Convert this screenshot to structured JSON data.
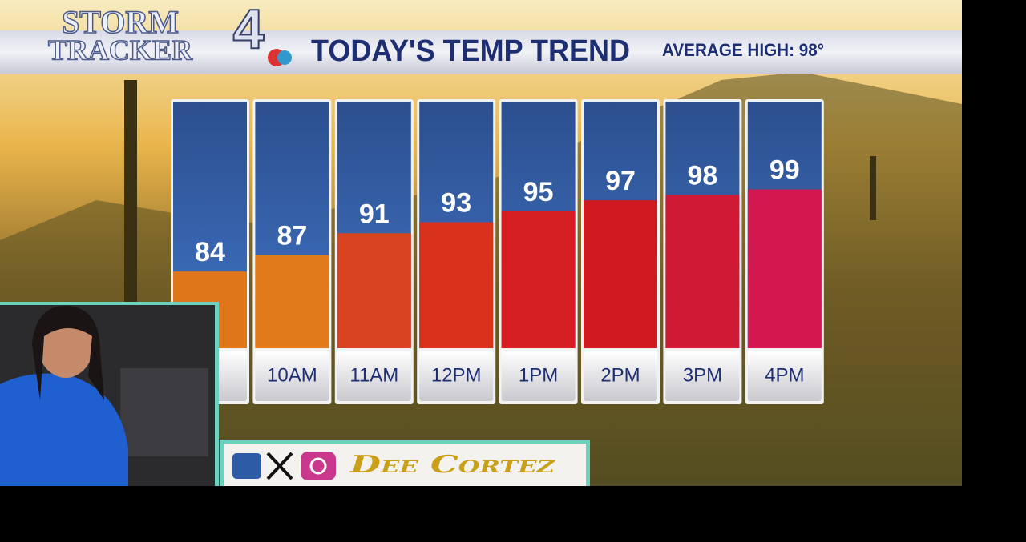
{
  "logo": {
    "line1": "STORM",
    "line2": "TRACKER",
    "number": "4"
  },
  "presenter": "Dee Cortez",
  "chart_data": {
    "type": "bar",
    "title": "TODAY'S TEMP TREND",
    "subtitle": "AVERAGE HIGH: 98°",
    "categories": [
      "M",
      "10AM",
      "11AM",
      "12PM",
      "1PM",
      "2PM",
      "3PM",
      "4PM"
    ],
    "values": [
      84,
      87,
      91,
      93,
      95,
      97,
      98,
      99
    ],
    "colors": [
      "#e0761a",
      "#e07a1a",
      "#d9431f",
      "#d8321d",
      "#d41e22",
      "#d0181f",
      "#d01a35",
      "#d4174e"
    ],
    "ylim": [
      70,
      115
    ]
  }
}
